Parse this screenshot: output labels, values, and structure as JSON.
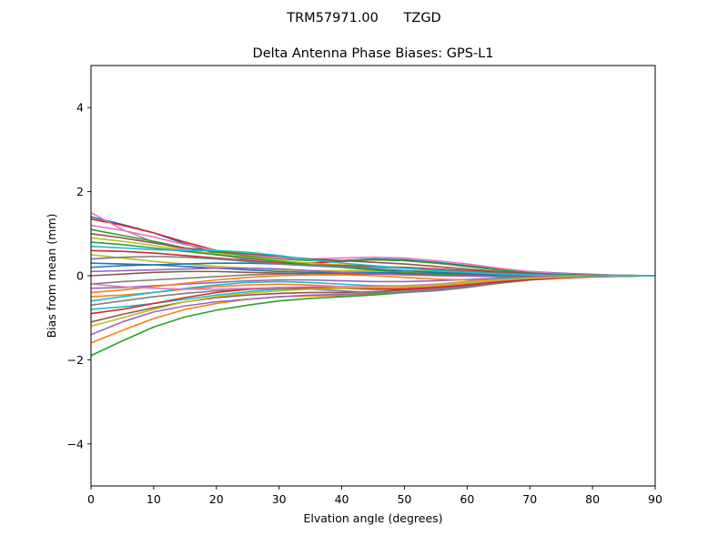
{
  "figure": {
    "suptitle": "TRM57971.00      TZGD"
  },
  "chart_data": {
    "type": "line",
    "title": "Delta Antenna Phase Biases: GPS-L1",
    "xlabel": "Elvation angle (degrees)",
    "ylabel": "Bias from mean (mm)",
    "xlim": [
      0,
      90
    ],
    "ylim": [
      -5,
      5
    ],
    "xticks": [
      0,
      10,
      20,
      30,
      40,
      50,
      60,
      70,
      80,
      90
    ],
    "yticks": [
      -4,
      -2,
      0,
      2,
      4
    ],
    "ytick_labels": [
      "−4",
      "−2",
      "0",
      "2",
      "4"
    ],
    "grid": false,
    "legend": "none",
    "x": [
      0,
      5,
      10,
      15,
      20,
      25,
      30,
      35,
      40,
      45,
      50,
      55,
      60,
      65,
      70,
      75,
      80,
      85,
      90
    ],
    "colors": [
      "#1f77b4",
      "#ff7f0e",
      "#2ca02c",
      "#d62728",
      "#9467bd",
      "#8c564b",
      "#e377c2",
      "#7f7f7f",
      "#bcbd22",
      "#17becf"
    ],
    "series": [
      {
        "values": [
          1.4,
          1.22,
          1.02,
          0.76,
          0.52,
          0.38,
          0.28,
          0.3,
          0.36,
          0.4,
          0.38,
          0.32,
          0.24,
          0.16,
          0.1,
          0.06,
          0.03,
          0.01,
          0.0
        ]
      },
      {
        "values": [
          -1.6,
          -1.3,
          -1.02,
          -0.8,
          -0.66,
          -0.56,
          -0.5,
          -0.48,
          -0.47,
          -0.44,
          -0.38,
          -0.3,
          -0.22,
          -0.15,
          -0.1,
          -0.06,
          -0.03,
          -0.01,
          0.0
        ]
      },
      {
        "values": [
          -1.9,
          -1.55,
          -1.22,
          -0.98,
          -0.82,
          -0.7,
          -0.6,
          -0.54,
          -0.5,
          -0.46,
          -0.4,
          -0.34,
          -0.26,
          -0.18,
          -0.1,
          -0.05,
          -0.02,
          -0.01,
          0.0
        ]
      },
      {
        "values": [
          1.35,
          1.2,
          1.02,
          0.8,
          0.6,
          0.46,
          0.34,
          0.3,
          0.34,
          0.38,
          0.36,
          0.3,
          0.22,
          0.14,
          0.08,
          0.04,
          0.02,
          0.01,
          0.0
        ]
      },
      {
        "values": [
          -1.4,
          -1.1,
          -0.86,
          -0.72,
          -0.62,
          -0.56,
          -0.5,
          -0.46,
          -0.44,
          -0.42,
          -0.38,
          -0.32,
          -0.24,
          -0.16,
          -0.09,
          -0.05,
          -0.02,
          -0.01,
          0.0
        ]
      },
      {
        "values": [
          -1.1,
          -0.92,
          -0.76,
          -0.62,
          -0.52,
          -0.46,
          -0.42,
          -0.4,
          -0.4,
          -0.38,
          -0.34,
          -0.28,
          -0.22,
          -0.15,
          -0.09,
          -0.05,
          -0.02,
          -0.01,
          0.0
        ]
      },
      {
        "values": [
          1.5,
          1.1,
          0.8,
          0.62,
          0.5,
          0.4,
          0.32,
          0.26,
          0.22,
          0.2,
          0.18,
          0.16,
          0.12,
          0.08,
          0.05,
          0.03,
          0.01,
          0.0,
          0.0
        ]
      },
      {
        "values": [
          -0.2,
          -0.14,
          -0.1,
          -0.06,
          -0.02,
          0.02,
          0.04,
          0.06,
          0.06,
          0.05,
          0.04,
          0.02,
          0.0,
          -0.02,
          -0.02,
          -0.02,
          -0.01,
          0.0,
          0.0
        ]
      },
      {
        "values": [
          0.9,
          0.82,
          0.72,
          0.6,
          0.52,
          0.44,
          0.36,
          0.3,
          0.26,
          0.22,
          0.18,
          0.14,
          0.1,
          0.06,
          0.04,
          0.02,
          0.01,
          0.0,
          0.0
        ]
      },
      {
        "values": [
          -0.8,
          -0.74,
          -0.66,
          -0.56,
          -0.46,
          -0.38,
          -0.32,
          -0.3,
          -0.3,
          -0.3,
          -0.28,
          -0.24,
          -0.18,
          -0.12,
          -0.07,
          -0.04,
          -0.02,
          -0.01,
          0.0
        ]
      },
      {
        "values": [
          0.3,
          0.28,
          0.26,
          0.22,
          0.18,
          0.14,
          0.1,
          0.08,
          0.08,
          0.08,
          0.07,
          0.06,
          0.05,
          0.03,
          0.02,
          0.01,
          0.0,
          0.0,
          0.0
        ]
      },
      {
        "values": [
          -0.5,
          -0.46,
          -0.4,
          -0.32,
          -0.26,
          -0.22,
          -0.2,
          -0.22,
          -0.26,
          -0.3,
          -0.3,
          -0.26,
          -0.2,
          -0.14,
          -0.08,
          -0.04,
          -0.02,
          -0.01,
          0.0
        ]
      },
      {
        "values": [
          1.1,
          0.96,
          0.82,
          0.66,
          0.56,
          0.48,
          0.4,
          0.36,
          0.36,
          0.38,
          0.36,
          0.3,
          0.22,
          0.14,
          0.08,
          0.04,
          0.02,
          0.01,
          0.0
        ]
      },
      {
        "values": [
          0.6,
          0.58,
          0.54,
          0.48,
          0.42,
          0.36,
          0.3,
          0.26,
          0.24,
          0.22,
          0.2,
          0.16,
          0.12,
          0.08,
          0.05,
          0.03,
          0.01,
          0.0,
          0.0
        ]
      },
      {
        "values": [
          -0.3,
          -0.28,
          -0.24,
          -0.2,
          -0.16,
          -0.12,
          -0.1,
          -0.1,
          -0.12,
          -0.14,
          -0.14,
          -0.12,
          -0.09,
          -0.06,
          -0.04,
          -0.02,
          -0.01,
          0.0,
          0.0
        ]
      },
      {
        "values": [
          0.0,
          0.04,
          0.08,
          0.1,
          0.1,
          0.08,
          0.06,
          0.04,
          0.04,
          0.04,
          0.04,
          0.03,
          0.02,
          0.01,
          0.0,
          0.0,
          0.0,
          0.0,
          0.0
        ]
      },
      {
        "values": [
          1.2,
          1.08,
          0.92,
          0.74,
          0.6,
          0.5,
          0.42,
          0.4,
          0.42,
          0.44,
          0.42,
          0.36,
          0.28,
          0.18,
          0.1,
          0.05,
          0.02,
          0.01,
          0.0
        ]
      },
      {
        "values": [
          -0.7,
          -0.6,
          -0.5,
          -0.42,
          -0.36,
          -0.32,
          -0.3,
          -0.32,
          -0.36,
          -0.4,
          -0.4,
          -0.36,
          -0.28,
          -0.18,
          -0.1,
          -0.05,
          -0.02,
          -0.01,
          0.0
        ]
      },
      {
        "values": [
          0.5,
          0.42,
          0.34,
          0.28,
          0.22,
          0.18,
          0.14,
          0.12,
          0.12,
          0.12,
          0.12,
          0.1,
          0.08,
          0.05,
          0.03,
          0.02,
          0.01,
          0.0,
          0.0
        ]
      },
      {
        "values": [
          -0.6,
          -0.5,
          -0.4,
          -0.3,
          -0.22,
          -0.16,
          -0.14,
          -0.16,
          -0.2,
          -0.24,
          -0.24,
          -0.2,
          -0.14,
          -0.08,
          -0.04,
          -0.02,
          -0.01,
          0.0,
          0.0
        ]
      },
      {
        "values": [
          0.2,
          0.24,
          0.26,
          0.28,
          0.3,
          0.3,
          0.28,
          0.24,
          0.2,
          0.16,
          0.12,
          0.08,
          0.05,
          0.03,
          0.01,
          0.0,
          0.0,
          0.0,
          0.0
        ]
      },
      {
        "values": [
          -0.4,
          -0.34,
          -0.26,
          -0.18,
          -0.1,
          -0.04,
          0.0,
          0.02,
          0.02,
          0.0,
          -0.04,
          -0.08,
          -0.1,
          -0.1,
          -0.08,
          -0.05,
          -0.02,
          -0.01,
          0.0
        ]
      },
      {
        "values": [
          0.8,
          0.74,
          0.66,
          0.58,
          0.5,
          0.42,
          0.34,
          0.26,
          0.2,
          0.14,
          0.08,
          0.04,
          0.0,
          -0.02,
          -0.03,
          -0.02,
          -0.01,
          0.0,
          0.0
        ]
      },
      {
        "values": [
          -0.9,
          -0.8,
          -0.66,
          -0.52,
          -0.4,
          -0.32,
          -0.28,
          -0.28,
          -0.3,
          -0.32,
          -0.32,
          -0.28,
          -0.22,
          -0.15,
          -0.09,
          -0.05,
          -0.02,
          -0.01,
          0.0
        ]
      },
      {
        "values": [
          0.1,
          0.12,
          0.14,
          0.16,
          0.18,
          0.18,
          0.16,
          0.12,
          0.08,
          0.04,
          0.02,
          0.0,
          -0.01,
          -0.02,
          -0.02,
          -0.01,
          -0.01,
          0.0,
          0.0
        ]
      },
      {
        "values": [
          1.0,
          0.9,
          0.78,
          0.66,
          0.58,
          0.52,
          0.46,
          0.4,
          0.36,
          0.32,
          0.28,
          0.22,
          0.16,
          0.1,
          0.06,
          0.03,
          0.01,
          0.0,
          0.0
        ]
      },
      {
        "values": [
          -0.2,
          -0.26,
          -0.3,
          -0.32,
          -0.32,
          -0.3,
          -0.28,
          -0.26,
          -0.26,
          -0.26,
          -0.24,
          -0.2,
          -0.15,
          -0.1,
          -0.06,
          -0.03,
          -0.01,
          0.0,
          0.0
        ]
      },
      {
        "values": [
          0.4,
          0.44,
          0.46,
          0.44,
          0.4,
          0.34,
          0.28,
          0.24,
          0.22,
          0.2,
          0.18,
          0.14,
          0.1,
          0.06,
          0.03,
          0.01,
          0.0,
          0.0,
          0.0
        ]
      },
      {
        "values": [
          -1.2,
          -1.0,
          -0.8,
          -0.62,
          -0.5,
          -0.42,
          -0.36,
          -0.32,
          -0.3,
          -0.28,
          -0.26,
          -0.22,
          -0.16,
          -0.1,
          -0.06,
          -0.03,
          -0.01,
          0.0,
          0.0
        ]
      },
      {
        "values": [
          0.7,
          0.66,
          0.62,
          0.6,
          0.6,
          0.56,
          0.48,
          0.38,
          0.3,
          0.24,
          0.18,
          0.12,
          0.08,
          0.04,
          0.02,
          0.01,
          0.0,
          0.0,
          0.0
        ]
      }
    ]
  }
}
